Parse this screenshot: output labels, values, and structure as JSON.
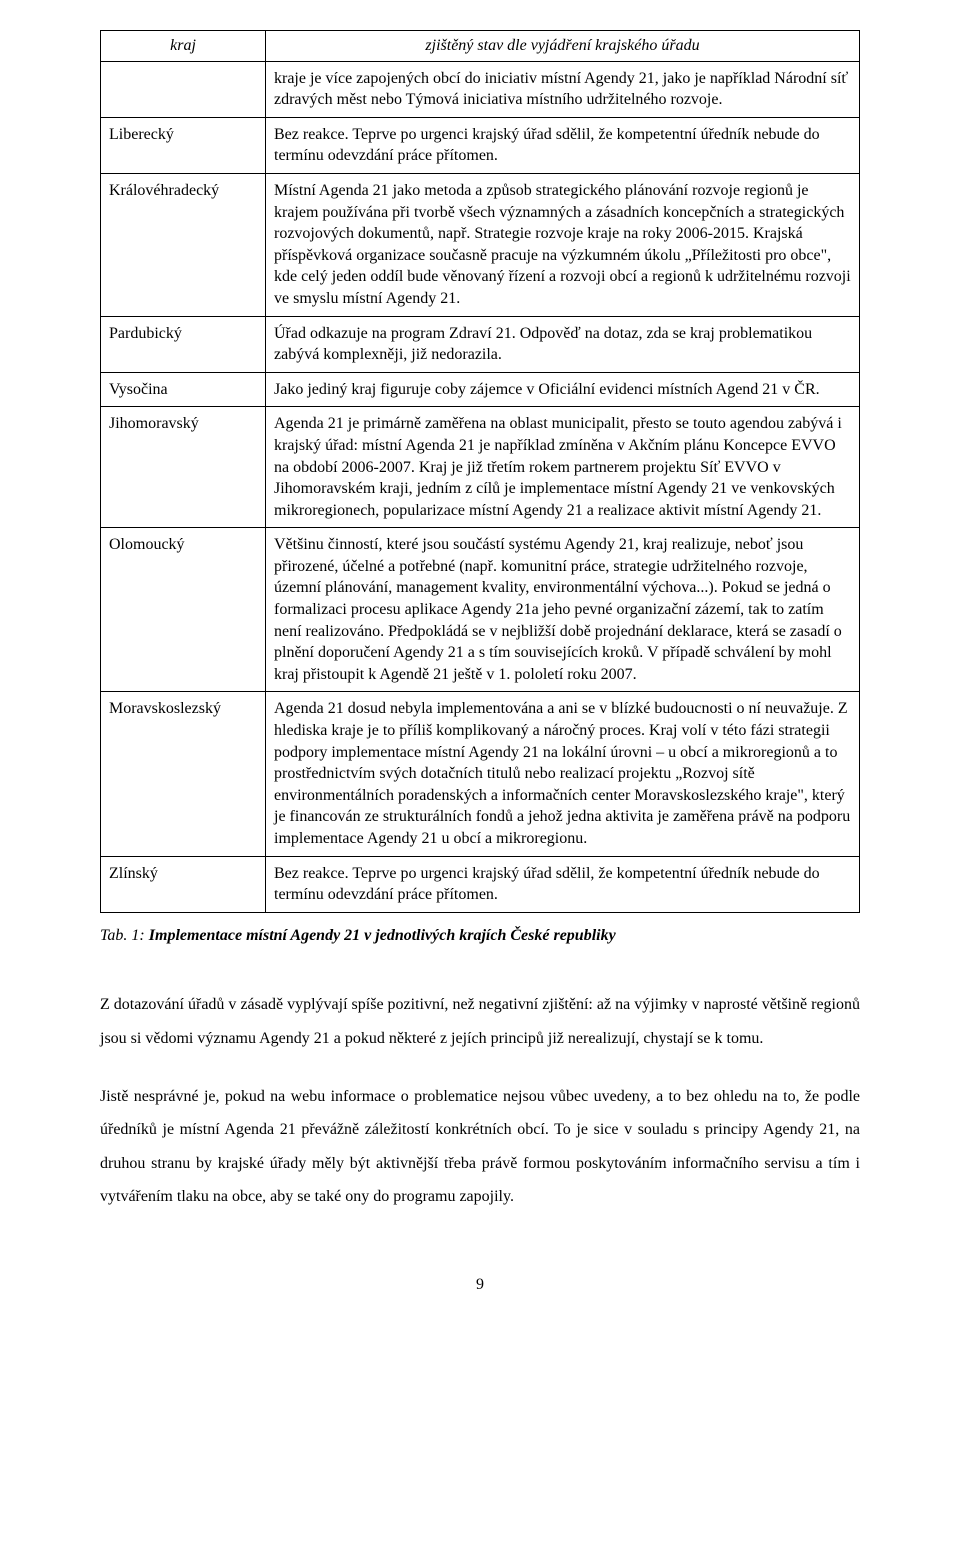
{
  "table": {
    "head_left": "kraj",
    "head_right": "zjištěný stav dle vyjádření krajského úřadu",
    "continuation_right": "kraje je více zapojených obcí do iniciativ místní Agendy 21, jako je například Národní síť zdravých měst nebo Týmová iniciativa místního udržitelného rozvoje.",
    "rows": [
      {
        "region": "Liberecký",
        "state": "Bez reakce. Teprve po urgenci krajský úřad sdělil, že kompetentní úředník nebude do termínu odevzdání práce přítomen."
      },
      {
        "region": "Královéhradecký",
        "state": "Místní Agenda 21 jako metoda a způsob strategického plánování rozvoje regionů je krajem používána při tvorbě všech významných a zásadních koncepčních a strategických rozvojových dokumentů, např. Strategie rozvoje kraje na roky 2006-2015. Krajská příspěvková organizace současně pracuje na výzkumném úkolu „Příležitosti pro obce\", kde celý jeden oddíl bude věnovaný řízení a rozvoji obcí a regionů k udržitelnému rozvoji ve smyslu místní Agendy 21."
      },
      {
        "region": "Pardubický",
        "state": "Úřad odkazuje na program Zdraví 21. Odpověď na dotaz, zda se kraj problematikou zabývá komplexněji, již nedorazila."
      },
      {
        "region": "Vysočina",
        "state": "Jako jediný kraj figuruje coby zájemce v Oficiální evidenci místních Agend 21 v ČR."
      },
      {
        "region": "Jihomoravský",
        "state": "Agenda 21 je primárně zaměřena na oblast municipalit, přesto se touto agendou zabývá i krajský úřad: místní Agenda 21 je například zmíněna v Akčním plánu Koncepce EVVO na období 2006-2007. Kraj je již třetím rokem partnerem projektu Síť EVVO v Jihomoravském kraji, jedním z cílů je implementace místní Agendy 21 ve venkovských mikroregionech, popularizace místní Agendy 21 a realizace aktivit místní Agendy 21."
      },
      {
        "region": "Olomoucký",
        "state": "Většinu činností, které jsou součástí systému Agendy 21, kraj realizuje, neboť jsou přirozené, účelné a potřebné (např. komunitní práce, strategie udržitelného rozvoje, územní plánování, management kvality, environmentální výchova...). Pokud se jedná o formalizaci procesu aplikace Agendy 21a jeho pevné organizační zázemí, tak to zatím není realizováno. Předpokládá se v nejbližší době projednání deklarace, která se zasadí o plnění doporučení Agendy 21 a s tím souvisejících kroků. V případě schválení by mohl kraj přistoupit k Agendě 21 ještě v 1. pololetí roku 2007."
      },
      {
        "region": "Moravskoslezský",
        "state": "Agenda 21 dosud nebyla implementována a ani se v blízké budoucnosti o ní neuvažuje. Z hlediska kraje je to příliš komplikovaný a náročný proces. Kraj volí v této fázi strategii podpory implementace místní Agendy 21 na lokální úrovni – u obcí a mikroregionů a to prostřednictvím svých dotačních titulů nebo realizací projektu „Rozvoj sítě environmentálních poradenských a informačních center Moravskoslezského kraje\", který je financován ze strukturálních fondů a jehož jedna aktivita je zaměřena právě na podporu implementace Agendy 21 u obcí a mikroregionu."
      },
      {
        "region": "Zlínský",
        "state": "Bez reakce. Teprve po urgenci krajský úřad sdělil, že kompetentní úředník nebude do termínu odevzdání práce přítomen."
      }
    ]
  },
  "caption_label": "Tab. 1: ",
  "caption_title": "Implementace místní Agendy 21 v jednotlivých krajích České republiky",
  "para1": "Z dotazování úřadů v zásadě vyplývají spíše pozitivní, než negativní zjištění: až na výjimky v naprosté většině regionů jsou si vědomi významu Agendy 21 a pokud některé z jejích principů již nerealizují, chystají se k tomu.",
  "para2": "Jistě nesprávné je, pokud na webu informace o problematice nejsou vůbec uvedeny, a to bez ohledu na to, že podle úředníků je místní Agenda 21 převážně záležitostí konkrétních obcí. To je sice v souladu s principy Agendy 21, na druhou stranu by krajské úřady měly být aktivnější třeba právě formou poskytováním informačního servisu a tím i vytvářením tlaku na obce, aby se také ony do programu zapojily.",
  "page_number": "9"
}
